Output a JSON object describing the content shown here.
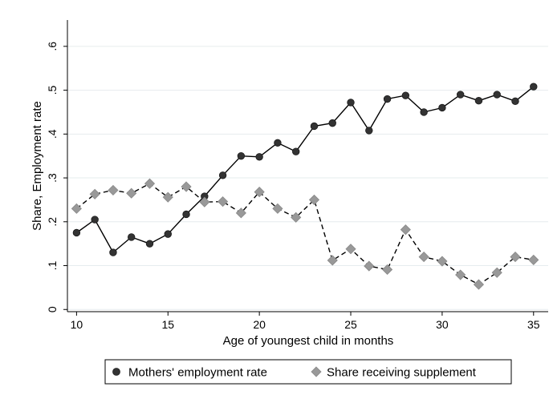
{
  "chart_data": {
    "type": "line",
    "title": "",
    "xlabel": "Age of youngest child in months",
    "ylabel": "Share, Employment rate",
    "xlim": [
      9.5,
      35.8
    ],
    "ylim": [
      -0.005,
      0.66
    ],
    "xticks": [
      10,
      15,
      20,
      25,
      30,
      35
    ],
    "yticks": [
      0,
      0.1,
      0.2,
      0.3,
      0.4,
      0.5,
      0.6
    ],
    "ytick_labels": [
      "0",
      ".1",
      ".2",
      ".3",
      ".4",
      ".5",
      ".6"
    ],
    "grid": true,
    "legend_position": "bottom",
    "x": [
      10,
      11,
      12,
      13,
      14,
      15,
      16,
      17,
      18,
      19,
      20,
      21,
      22,
      23,
      24,
      25,
      26,
      27,
      28,
      29,
      30,
      31,
      32,
      33,
      34,
      35
    ],
    "series": [
      {
        "name": "Mothers' employment rate",
        "marker": "circle",
        "line": "solid",
        "color": "#333333",
        "values": [
          0.175,
          0.205,
          0.13,
          0.165,
          0.15,
          0.172,
          0.217,
          0.258,
          0.306,
          0.35,
          0.348,
          0.38,
          0.36,
          0.418,
          0.425,
          0.472,
          0.408,
          0.48,
          0.488,
          0.45,
          0.46,
          0.49,
          0.476,
          0.49,
          0.475,
          0.508
        ]
      },
      {
        "name": "Share receiving supplement",
        "marker": "diamond",
        "line": "dashed",
        "color": "#999999",
        "values": [
          0.23,
          0.263,
          0.272,
          0.265,
          0.287,
          0.256,
          0.28,
          0.245,
          0.246,
          0.22,
          0.268,
          0.23,
          0.21,
          0.25,
          0.112,
          0.138,
          0.099,
          0.091,
          0.182,
          0.12,
          0.11,
          0.079,
          0.057,
          0.084,
          0.12,
          0.113
        ]
      }
    ]
  }
}
